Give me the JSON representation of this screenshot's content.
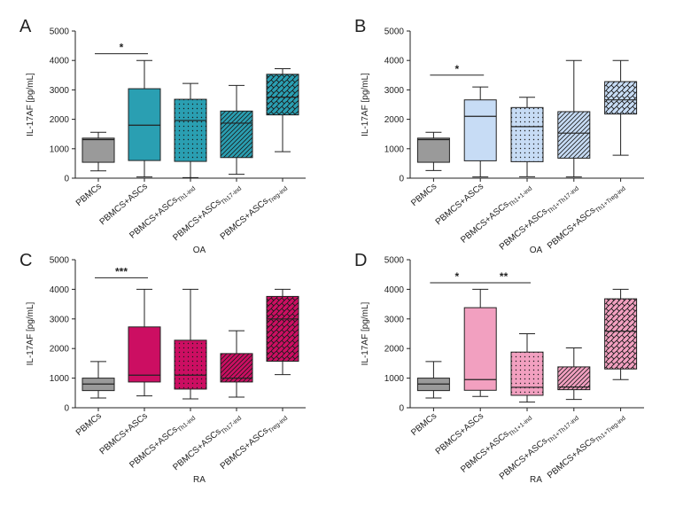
{
  "figure": {
    "note": "Four box-plot panels of IL-17AF concentration"
  },
  "chart_data": [
    {
      "type": "box",
      "panel": "A",
      "group_label": "OA",
      "ylabel": "IL-17AF [pg/mL]",
      "ylim": [
        0,
        5000
      ],
      "yticks": [
        0,
        1000,
        2000,
        3000,
        4000,
        5000
      ],
      "categories": [
        {
          "main": "PBMCs",
          "sub": ""
        },
        {
          "main": "PBMCS+ASCs",
          "sub": ""
        },
        {
          "main": "PBMCS+ASCs",
          "sub": "Th1-ind"
        },
        {
          "main": "PBMCS+ASCs",
          "sub": "Th17-ind"
        },
        {
          "main": "PBMCS+ASCs",
          "sub": "Treg-ind"
        }
      ],
      "boxes": [
        {
          "min": 250,
          "q1": 540,
          "median": 1310,
          "q3": 1360,
          "max": 1560,
          "color": "#9a9a9a",
          "pattern": "none"
        },
        {
          "min": 40,
          "q1": 600,
          "median": 1800,
          "q3": 3040,
          "max": 4000,
          "color": "#2a9fb2",
          "pattern": "none"
        },
        {
          "min": 20,
          "q1": 570,
          "median": 1960,
          "q3": 2680,
          "max": 3220,
          "color": "#2a9fb2",
          "pattern": "dots"
        },
        {
          "min": 130,
          "q1": 700,
          "median": 1870,
          "q3": 2280,
          "max": 3150,
          "color": "#2a9fb2",
          "pattern": "diag"
        },
        {
          "min": 900,
          "q1": 2150,
          "median": 2750,
          "q3": 3530,
          "max": 3720,
          "color": "#2a9fb2",
          "pattern": "weave"
        }
      ],
      "significance": [
        {
          "from": 0,
          "to": 1,
          "label": "*",
          "y": 4230
        }
      ]
    },
    {
      "type": "box",
      "panel": "B",
      "group_label": "OA",
      "ylabel": "IL-17AF [pg/mL]",
      "ylim": [
        0,
        5000
      ],
      "yticks": [
        0,
        1000,
        2000,
        3000,
        4000,
        5000
      ],
      "categories": [
        {
          "main": "PBMCs",
          "sub": ""
        },
        {
          "main": "PBMCS+ASCs",
          "sub": ""
        },
        {
          "main": "PBMCS+ASCs",
          "sub": "Th1+1-ind"
        },
        {
          "main": "PBMCS+ASCs",
          "sub": "Th1+Th17-ind"
        },
        {
          "main": "PBMCS+ASCs",
          "sub": "Th1+Treg-ind"
        }
      ],
      "boxes": [
        {
          "min": 260,
          "q1": 540,
          "median": 1310,
          "q3": 1360,
          "max": 1560,
          "color": "#9a9a9a",
          "pattern": "none"
        },
        {
          "min": 40,
          "q1": 590,
          "median": 2100,
          "q3": 2660,
          "max": 3100,
          "color": "#c7dcf5",
          "pattern": "none"
        },
        {
          "min": 50,
          "q1": 560,
          "median": 1750,
          "q3": 2400,
          "max": 2750,
          "color": "#c7dcf5",
          "pattern": "dots"
        },
        {
          "min": 40,
          "q1": 680,
          "median": 1530,
          "q3": 2260,
          "max": 4000,
          "color": "#c7dcf5",
          "pattern": "diag"
        },
        {
          "min": 780,
          "q1": 2180,
          "median": 2660,
          "q3": 3280,
          "max": 4000,
          "color": "#c7dcf5",
          "pattern": "weave"
        }
      ],
      "significance": [
        {
          "from": 0,
          "to": 1,
          "label": "*",
          "y": 3500
        }
      ]
    },
    {
      "type": "box",
      "panel": "C",
      "group_label": "RA",
      "ylabel": "IL-17AF [pg/mL]",
      "ylim": [
        0,
        5000
      ],
      "yticks": [
        0,
        1000,
        2000,
        3000,
        4000,
        5000
      ],
      "categories": [
        {
          "main": "PBMCs",
          "sub": ""
        },
        {
          "main": "PBMCS+ASCs",
          "sub": ""
        },
        {
          "main": "PBMCS+ASCs",
          "sub": "Th1-ind"
        },
        {
          "main": "PBMCS+ASCs",
          "sub": "Th17-ind"
        },
        {
          "main": "PBMCS+ASCs",
          "sub": "Treg-ind"
        }
      ],
      "boxes": [
        {
          "min": 330,
          "q1": 580,
          "median": 800,
          "q3": 1000,
          "max": 1560,
          "color": "#9a9a9a",
          "pattern": "none"
        },
        {
          "min": 400,
          "q1": 870,
          "median": 1100,
          "q3": 2730,
          "max": 4000,
          "color": "#cc0e62",
          "pattern": "none"
        },
        {
          "min": 300,
          "q1": 630,
          "median": 1100,
          "q3": 2280,
          "max": 4000,
          "color": "#cc0e62",
          "pattern": "dots"
        },
        {
          "min": 360,
          "q1": 870,
          "median": 1000,
          "q3": 1830,
          "max": 2600,
          "color": "#cc0e62",
          "pattern": "diag"
        },
        {
          "min": 1120,
          "q1": 1570,
          "median": 3000,
          "q3": 3760,
          "max": 4000,
          "color": "#cc0e62",
          "pattern": "weave"
        }
      ],
      "significance": [
        {
          "from": 0,
          "to": 1,
          "label": "***",
          "y": 4390
        }
      ]
    },
    {
      "type": "box",
      "panel": "D",
      "group_label": "RA",
      "ylabel": "IL-17AF [pg/mL]",
      "ylim": [
        0,
        5000
      ],
      "yticks": [
        0,
        1000,
        2000,
        3000,
        4000,
        5000
      ],
      "categories": [
        {
          "main": "PBMCs",
          "sub": ""
        },
        {
          "main": "PBMCS+ASCs",
          "sub": ""
        },
        {
          "main": "PBMCS+ASCs",
          "sub": "Th1+1-ind"
        },
        {
          "main": "PBMCS+ASCs",
          "sub": "Th1+Th17-ind"
        },
        {
          "main": "PBMCS+ASCs",
          "sub": "Th1+Treg-ind"
        }
      ],
      "boxes": [
        {
          "min": 330,
          "q1": 580,
          "median": 800,
          "q3": 1000,
          "max": 1560,
          "color": "#9a9a9a",
          "pattern": "none"
        },
        {
          "min": 380,
          "q1": 590,
          "median": 950,
          "q3": 3380,
          "max": 4000,
          "color": "#f2a0c0",
          "pattern": "none"
        },
        {
          "min": 190,
          "q1": 420,
          "median": 690,
          "q3": 1880,
          "max": 2500,
          "color": "#f2a0c0",
          "pattern": "dots"
        },
        {
          "min": 280,
          "q1": 610,
          "median": 700,
          "q3": 1380,
          "max": 2020,
          "color": "#f2a0c0",
          "pattern": "diag"
        },
        {
          "min": 950,
          "q1": 1310,
          "median": 2580,
          "q3": 3680,
          "max": 4000,
          "color": "#f2a0c0",
          "pattern": "weave"
        }
      ],
      "significance": [
        {
          "from": 0,
          "to": 1,
          "label": "*",
          "y": 4220
        },
        {
          "from": 1,
          "to": 2,
          "label": "**",
          "y": 4220
        }
      ]
    }
  ]
}
